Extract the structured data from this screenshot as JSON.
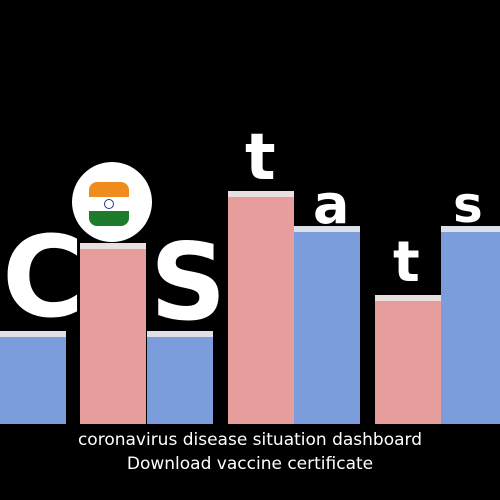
{
  "logo": {
    "letters": [
      "C",
      "O",
      "S",
      "t",
      "a",
      "t",
      "s"
    ],
    "flag_icon": "india-flag-icon",
    "colors": {
      "blue_bar": "#7c9ddb",
      "pink_bar": "#e89d9d",
      "background": "#000000",
      "text": "#ffffff"
    }
  },
  "tagline": "coronavirus disease situation dashboard",
  "link": "Download vaccine certificate"
}
